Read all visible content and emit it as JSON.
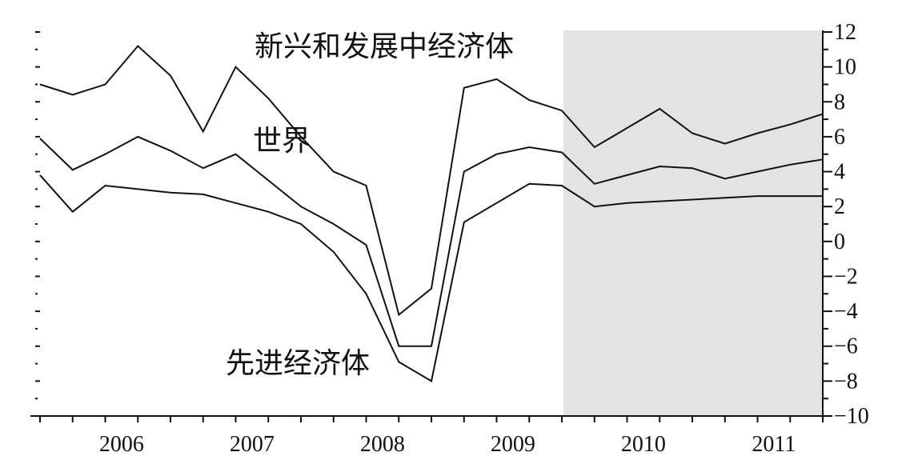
{
  "chart_data": {
    "type": "line",
    "x": [
      "2005Q4",
      "2006Q1",
      "2006Q2",
      "2006Q3",
      "2006Q4",
      "2007Q1",
      "2007Q2",
      "2007Q3",
      "2007Q4",
      "2008Q1",
      "2008Q2",
      "2008Q3",
      "2008Q4",
      "2009Q1",
      "2009Q2",
      "2009Q3",
      "2009Q4",
      "2010Q1",
      "2010Q2",
      "2010Q3",
      "2010Q4",
      "2011Q1",
      "2011Q2",
      "2011Q3",
      "2011Q4"
    ],
    "x_tick_labels": [
      "2006",
      "2007",
      "2008",
      "2009",
      "2010",
      "2011"
    ],
    "y_ticks": [
      12,
      10,
      8,
      6,
      4,
      2,
      0,
      -2,
      -4,
      -6,
      -8,
      -10
    ],
    "y_tick_labels": [
      "12",
      "10",
      "8",
      "6",
      "4",
      "2",
      "0",
      "−2",
      "−4",
      "−6",
      "−8",
      "−10"
    ],
    "ylim": [
      -10,
      12
    ],
    "y_axis_side": "right",
    "grid": false,
    "shaded_region": {
      "from": "2009Q4",
      "to": "2011Q4",
      "color": "#e3e3e3"
    },
    "series": [
      {
        "name": "新兴和发展中经济体",
        "values": [
          9.0,
          8.4,
          9.0,
          11.2,
          9.5,
          6.3,
          10.0,
          8.2,
          6.0,
          4.0,
          3.2,
          -4.2,
          -2.7,
          8.8,
          9.3,
          8.1,
          7.5,
          5.4,
          6.5,
          7.6,
          6.2,
          5.6,
          6.2,
          6.7,
          7.3
        ]
      },
      {
        "name": "世界",
        "values": [
          5.9,
          4.1,
          5.0,
          6.0,
          5.2,
          4.2,
          5.0,
          3.5,
          2.0,
          1.0,
          -0.2,
          -6.0,
          -6.0,
          4.0,
          5.0,
          5.4,
          5.1,
          3.3,
          3.8,
          4.3,
          4.2,
          3.6,
          4.0,
          4.4,
          4.7
        ]
      },
      {
        "name": "先进经济体",
        "values": [
          3.8,
          1.7,
          3.2,
          3.0,
          2.8,
          2.7,
          2.2,
          1.7,
          1.0,
          -0.6,
          -3.0,
          -6.9,
          -8.0,
          1.1,
          2.2,
          3.3,
          3.2,
          2.0,
          2.2,
          2.3,
          2.4,
          2.5,
          2.6,
          2.6,
          2.6
        ]
      }
    ]
  }
}
